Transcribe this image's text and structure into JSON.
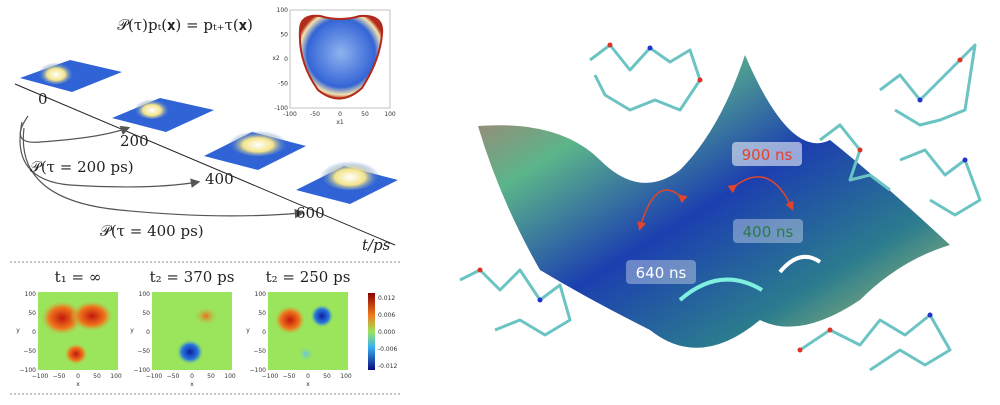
{
  "left_top": {
    "equation": "𝒫(τ)pₜ(𝐱) = pₜ₊τ(𝐱)",
    "timeline": {
      "ticks": [
        "0",
        "200",
        "400",
        "600"
      ],
      "axis_label": "t/ps"
    },
    "transitions": [
      "𝒫(τ = 200 ps)",
      "𝒫(τ = 400 ps)"
    ],
    "inset": {
      "x_label": "x1",
      "y_label": "x2",
      "x_ticks": [
        "-100",
        "-50",
        "0",
        "50",
        "100"
      ],
      "y_ticks": [
        "100",
        "50",
        "0",
        "-50",
        "-100"
      ]
    }
  },
  "left_bottom": {
    "panels": [
      {
        "title": "t₁ = ∞"
      },
      {
        "title": "t₂ = 370 ps"
      },
      {
        "title": "t₂ = 250 ps"
      }
    ],
    "x_label": "x",
    "y_label": "y",
    "x_ticks": [
      "−100",
      "−50",
      "0",
      "50",
      "100"
    ],
    "y_ticks": [
      "100",
      "50",
      "0",
      "−50",
      "−100"
    ],
    "colorbar_ticks": [
      "0.012",
      "0.006",
      "0.000",
      "-0.006",
      "-0.012"
    ]
  },
  "right": {
    "timescales": [
      "900 ns",
      "400 ns",
      "640 ns"
    ]
  }
}
